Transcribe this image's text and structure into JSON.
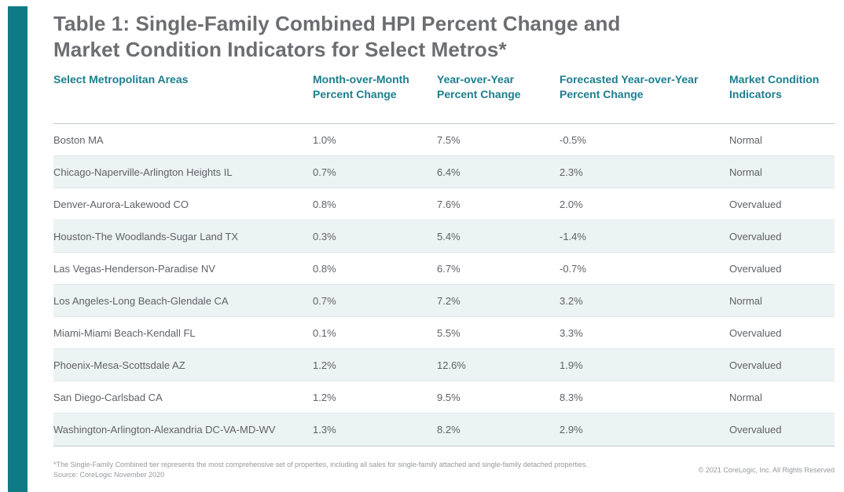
{
  "header": {
    "title_line1": "Table 1: Single-Family Combined HPI Percent Change and",
    "title_line2": "Market Condition Indicators for Select Metros*"
  },
  "table": {
    "columns": [
      {
        "label": "Select Metropolitan Areas"
      },
      {
        "label": "Month-over-Month Percent Change"
      },
      {
        "label": "Year-over-Year Percent Change"
      },
      {
        "label": "Forecasted Year-over-Year Percent Change"
      },
      {
        "label": "Market Condition Indicators"
      }
    ],
    "rows": [
      {
        "metro": "Boston MA",
        "mom": "1.0%",
        "yoy": "7.5%",
        "forecast": "-0.5%",
        "condition": "Normal"
      },
      {
        "metro": "Chicago-Naperville-Arlington Heights IL",
        "mom": "0.7%",
        "yoy": "6.4%",
        "forecast": "2.3%",
        "condition": "Normal"
      },
      {
        "metro": "Denver-Aurora-Lakewood CO",
        "mom": "0.8%",
        "yoy": "7.6%",
        "forecast": "2.0%",
        "condition": "Overvalued"
      },
      {
        "metro": "Houston-The Woodlands-Sugar Land TX",
        "mom": "0.3%",
        "yoy": "5.4%",
        "forecast": "-1.4%",
        "condition": "Overvalued"
      },
      {
        "metro": "Las Vegas-Henderson-Paradise NV",
        "mom": "0.8%",
        "yoy": "6.7%",
        "forecast": "-0.7%",
        "condition": "Overvalued"
      },
      {
        "metro": "Los Angeles-Long Beach-Glendale CA",
        "mom": "0.7%",
        "yoy": "7.2%",
        "forecast": "3.2%",
        "condition": "Normal"
      },
      {
        "metro": "Miami-Miami Beach-Kendall FL",
        "mom": "0.1%",
        "yoy": "5.5%",
        "forecast": "3.3%",
        "condition": "Overvalued"
      },
      {
        "metro": "Phoenix-Mesa-Scottsdale AZ",
        "mom": "1.2%",
        "yoy": "12.6%",
        "forecast": "1.9%",
        "condition": "Overvalued"
      },
      {
        "metro": "San Diego-Carlsbad CA",
        "mom": "1.2%",
        "yoy": "9.5%",
        "forecast": "8.3%",
        "condition": "Normal"
      },
      {
        "metro": "Washington-Arlington-Alexandria DC-VA-MD-WV",
        "mom": "1.3%",
        "yoy": "8.2%",
        "forecast": "2.9%",
        "condition": "Overvalued"
      }
    ]
  },
  "footer": {
    "footnote": "*The Single-Family Combined tier represents the most comprehensive set of properties, including all sales for single-family attached and single-family detached properties.",
    "source": "Source: CoreLogic November 2020",
    "copyright": "© 2021 CoreLogic, Inc. All Rights Reserved"
  },
  "colors": {
    "accent_teal": "#0e7a86",
    "header_text_teal": "#1d7e8e",
    "title_gray": "#6d6e71",
    "body_gray": "#606266",
    "alt_row": "#ecf3f3",
    "muted_gray": "#96989b"
  }
}
